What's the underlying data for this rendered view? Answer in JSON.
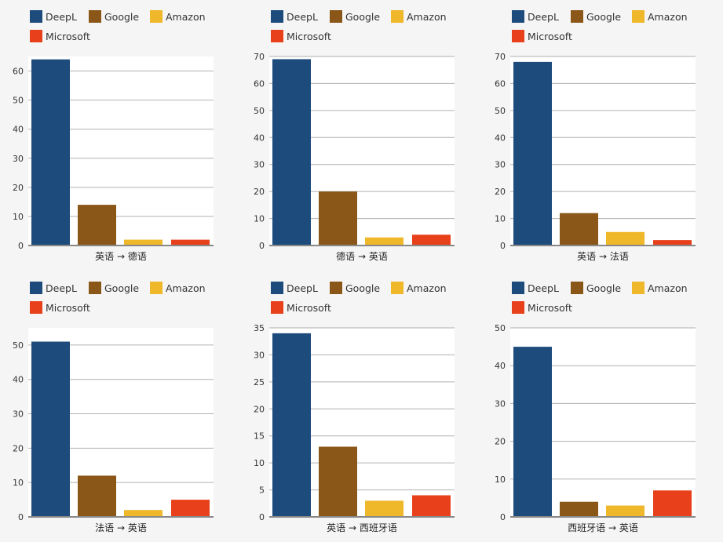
{
  "legend": [
    {
      "name": "DeepL",
      "color": "#1c4b7c"
    },
    {
      "name": "Google",
      "color": "#8b5718"
    },
    {
      "name": "Amazon",
      "color": "#efb72a"
    },
    {
      "name": "Microsoft",
      "color": "#e8401a"
    }
  ],
  "chart_data": [
    {
      "type": "bar",
      "categories": [
        "DeepL",
        "Google",
        "Amazon",
        "Microsoft"
      ],
      "values": [
        64,
        14,
        2,
        2
      ],
      "xlabel": "英语 → 德语",
      "ylim": [
        0,
        65
      ],
      "yticks": [
        0,
        10,
        20,
        30,
        40,
        50,
        60
      ]
    },
    {
      "type": "bar",
      "categories": [
        "DeepL",
        "Google",
        "Amazon",
        "Microsoft"
      ],
      "values": [
        69,
        20,
        3,
        4
      ],
      "xlabel": "德语 → 英语",
      "ylim": [
        0,
        70
      ],
      "yticks": [
        0,
        10,
        20,
        30,
        40,
        50,
        60,
        70
      ]
    },
    {
      "type": "bar",
      "categories": [
        "DeepL",
        "Google",
        "Amazon",
        "Microsoft"
      ],
      "values": [
        68,
        12,
        5,
        2
      ],
      "xlabel": "英语 → 法语",
      "ylim": [
        0,
        70
      ],
      "yticks": [
        0,
        10,
        20,
        30,
        40,
        50,
        60,
        70
      ]
    },
    {
      "type": "bar",
      "categories": [
        "DeepL",
        "Google",
        "Amazon",
        "Microsoft"
      ],
      "values": [
        51,
        12,
        2,
        5
      ],
      "xlabel": "法语 → 英语",
      "ylim": [
        0,
        55
      ],
      "yticks": [
        0,
        10,
        20,
        30,
        40,
        50
      ]
    },
    {
      "type": "bar",
      "categories": [
        "DeepL",
        "Google",
        "Amazon",
        "Microsoft"
      ],
      "values": [
        34,
        13,
        3,
        4
      ],
      "xlabel": "英语 → 西班牙语",
      "ylim": [
        0,
        35
      ],
      "yticks": [
        0,
        5,
        10,
        15,
        20,
        25,
        30,
        35
      ]
    },
    {
      "type": "bar",
      "categories": [
        "DeepL",
        "Google",
        "Amazon",
        "Microsoft"
      ],
      "values": [
        45,
        4,
        3,
        7
      ],
      "xlabel": "西班牙语 → 英语",
      "ylim": [
        0,
        50
      ],
      "yticks": [
        0,
        10,
        20,
        30,
        40,
        50
      ]
    }
  ]
}
